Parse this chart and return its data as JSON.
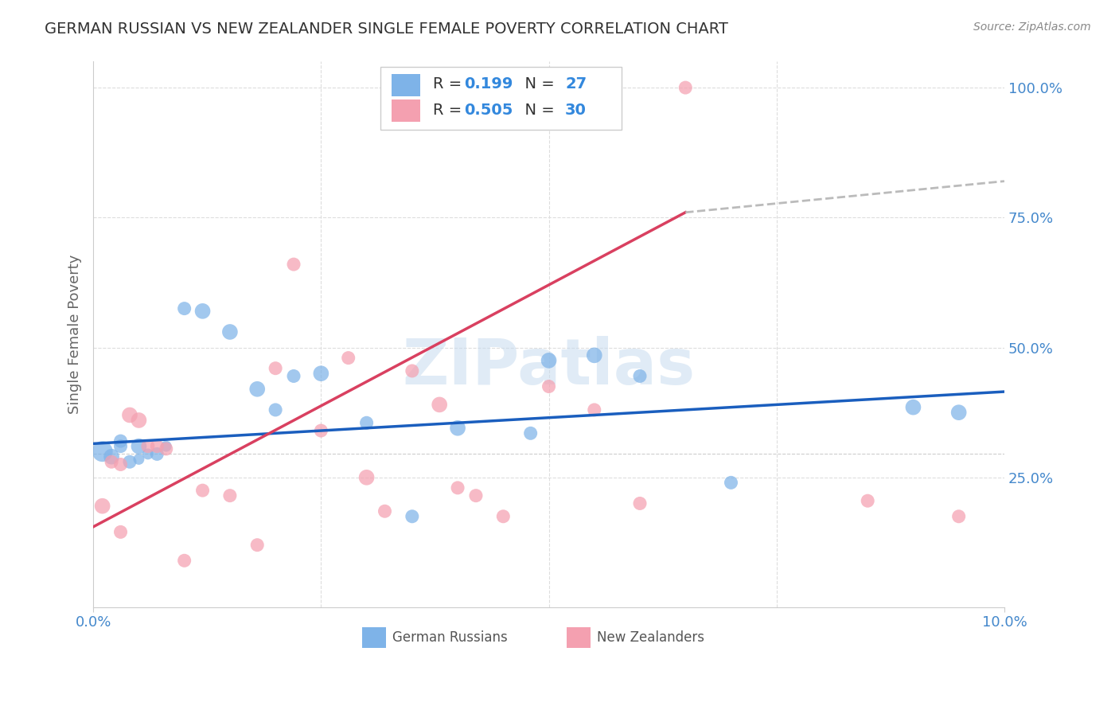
{
  "title": "GERMAN RUSSIAN VS NEW ZEALANDER SINGLE FEMALE POVERTY CORRELATION CHART",
  "source": "Source: ZipAtlas.com",
  "ylabel": "Single Female Poverty",
  "ylabel_right_labels": [
    "25.0%",
    "50.0%",
    "75.0%",
    "100.0%"
  ],
  "ylabel_right_values": [
    0.25,
    0.5,
    0.75,
    1.0
  ],
  "watermark": "ZIPatlas",
  "legend_blue_R": "0.199",
  "legend_blue_N": "27",
  "legend_pink_R": "0.505",
  "legend_pink_N": "30",
  "legend_blue_label": "German Russians",
  "legend_pink_label": "New Zealanders",
  "blue_color": "#7EB3E8",
  "pink_color": "#F4A0B0",
  "blue_line_color": "#1A5EBE",
  "pink_line_color": "#D94060",
  "dashed_line_color": "#BBBBBB",
  "background_color": "#FFFFFF",
  "grid_color": "#DDDDDD",
  "blue_scatter_x": [
    0.001,
    0.002,
    0.003,
    0.003,
    0.004,
    0.005,
    0.005,
    0.006,
    0.007,
    0.008,
    0.01,
    0.012,
    0.015,
    0.018,
    0.02,
    0.022,
    0.025,
    0.03,
    0.035,
    0.04,
    0.048,
    0.05,
    0.055,
    0.06,
    0.07,
    0.09,
    0.095
  ],
  "blue_scatter_y": [
    0.3,
    0.29,
    0.31,
    0.32,
    0.28,
    0.31,
    0.285,
    0.295,
    0.295,
    0.31,
    0.575,
    0.57,
    0.53,
    0.42,
    0.38,
    0.445,
    0.45,
    0.355,
    0.175,
    0.345,
    0.335,
    0.475,
    0.485,
    0.445,
    0.24,
    0.385,
    0.375
  ],
  "blue_scatter_sizes": [
    350,
    200,
    150,
    150,
    150,
    200,
    100,
    100,
    150,
    100,
    150,
    200,
    200,
    200,
    150,
    150,
    200,
    150,
    150,
    200,
    150,
    200,
    200,
    150,
    150,
    200,
    200
  ],
  "pink_scatter_x": [
    0.001,
    0.002,
    0.003,
    0.003,
    0.004,
    0.005,
    0.006,
    0.007,
    0.008,
    0.01,
    0.012,
    0.015,
    0.018,
    0.02,
    0.022,
    0.025,
    0.028,
    0.03,
    0.032,
    0.035,
    0.038,
    0.04,
    0.042,
    0.045,
    0.05,
    0.055,
    0.06,
    0.065,
    0.085,
    0.095
  ],
  "pink_scatter_y": [
    0.195,
    0.28,
    0.275,
    0.145,
    0.37,
    0.36,
    0.31,
    0.31,
    0.305,
    0.09,
    0.225,
    0.215,
    0.12,
    0.46,
    0.66,
    0.34,
    0.48,
    0.25,
    0.185,
    0.455,
    0.39,
    0.23,
    0.215,
    0.175,
    0.425,
    0.38,
    0.2,
    1.0,
    0.205,
    0.175
  ],
  "pink_scatter_sizes": [
    200,
    150,
    150,
    150,
    200,
    200,
    150,
    150,
    150,
    150,
    150,
    150,
    150,
    150,
    150,
    150,
    150,
    200,
    150,
    150,
    200,
    150,
    150,
    150,
    150,
    150,
    150,
    150,
    150,
    150
  ],
  "blue_trend_x": [
    0.0,
    0.1
  ],
  "blue_trend_y": [
    0.315,
    0.415
  ],
  "pink_trend_x": [
    0.0,
    0.065
  ],
  "pink_trend_y": [
    0.155,
    0.76
  ],
  "dashed_trend_x": [
    0.065,
    0.1
  ],
  "dashed_trend_y": [
    0.76,
    0.82
  ],
  "xlim": [
    0.0,
    0.1
  ],
  "ylim": [
    0.0,
    1.05
  ],
  "xtick_positions": [
    0.0,
    0.1
  ],
  "xtick_labels": [
    "0.0%",
    "10.0%"
  ],
  "ytick_dashed_y": 0.295,
  "title_color": "#333333",
  "source_color": "#888888",
  "tick_color": "#4488CC"
}
